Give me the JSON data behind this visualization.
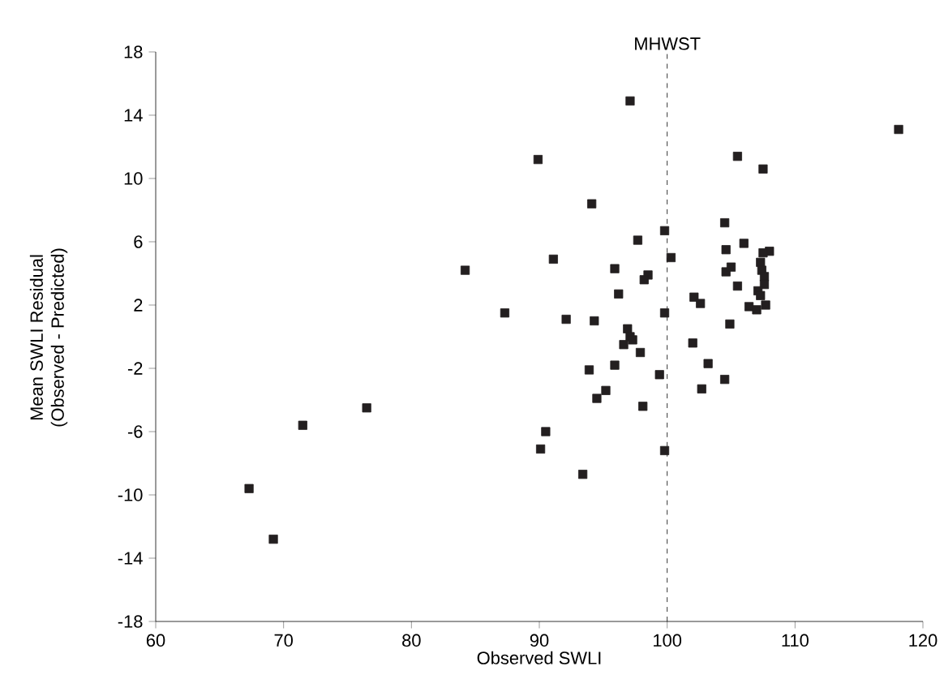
{
  "chart_data": {
    "type": "scatter",
    "xlabel": "Observed SWLI",
    "ylabel": "Mean SWLI Residual\n(Observed - Predicted)",
    "series": [
      {
        "color": "#231f20",
        "x": [
          67.3,
          69.2,
          71.5,
          76.5,
          84.2,
          87.3,
          97.1,
          118.1,
          89.9,
          105.5,
          107.5,
          94.1,
          104.5,
          99.8,
          97.7,
          106.0,
          104.6,
          108.0,
          107.5,
          91.1,
          100.3,
          95.9,
          104.6,
          105.0,
          107.3,
          107.4,
          107.6,
          98.5,
          98.2,
          105.5,
          107.6,
          107.1,
          107.3,
          96.2,
          102.1,
          102.6,
          106.4,
          107.0,
          107.7,
          99.8,
          92.1,
          94.3,
          104.9,
          96.9,
          97.1,
          97.3,
          96.6,
          102.0,
          97.9,
          103.2,
          95.9,
          93.9,
          99.4,
          104.5,
          102.7,
          95.2,
          94.5,
          98.1,
          90.5,
          90.1,
          99.8,
          93.4
        ],
        "values": [
          -9.6,
          -12.8,
          -5.6,
          -4.5,
          4.2,
          1.5,
          14.9,
          13.1,
          11.2,
          11.4,
          10.6,
          8.4,
          7.2,
          6.7,
          6.1,
          5.9,
          5.5,
          5.4,
          5.3,
          4.9,
          5.0,
          4.3,
          4.1,
          4.4,
          4.7,
          4.2,
          3.8,
          3.9,
          3.6,
          3.2,
          3.3,
          2.9,
          2.6,
          2.7,
          2.5,
          2.1,
          1.9,
          1.7,
          2.0,
          1.5,
          1.1,
          1.0,
          0.8,
          0.5,
          0.0,
          -0.2,
          -0.5,
          -0.4,
          -1.0,
          -1.7,
          -1.8,
          -2.1,
          -2.4,
          -2.7,
          -3.3,
          -3.4,
          -3.9,
          -4.4,
          -6.0,
          -7.1,
          -7.2,
          -8.7
        ]
      }
    ],
    "marker": "square",
    "xlim": [
      60,
      120
    ],
    "xticks": [
      60,
      70,
      80,
      90,
      100,
      110,
      120
    ],
    "ylim": [
      -18,
      18
    ],
    "yticks": [
      -18,
      -14,
      -10,
      -6,
      -2,
      2,
      6,
      10,
      14,
      18
    ],
    "ref_lines": [
      {
        "axis": "x",
        "value": 100,
        "label": "MHWST",
        "line_style": "dashed"
      }
    ],
    "grid": false
  }
}
